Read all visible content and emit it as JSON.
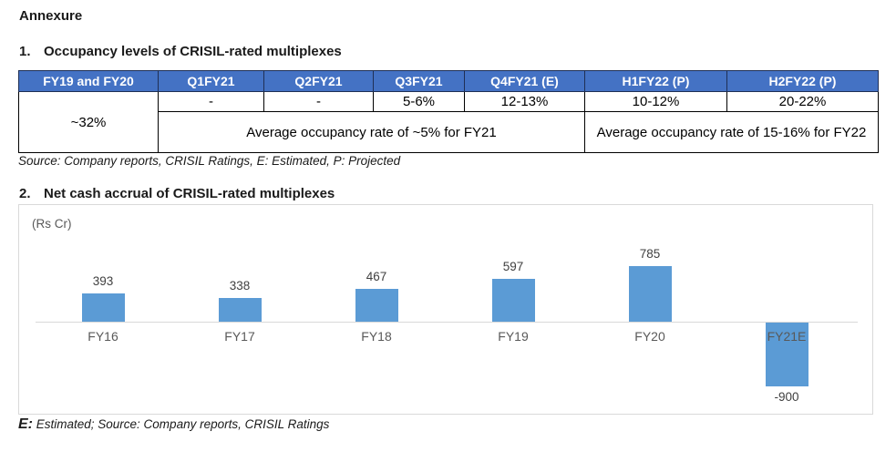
{
  "page": {
    "title": "Annexure"
  },
  "colors": {
    "header_blue": "#4472C4",
    "bar_blue": "#5B9BD5"
  },
  "section1": {
    "heading_num": "1.",
    "heading": "Occupancy levels of CRISIL-rated multiplexes",
    "table": {
      "headers": [
        "FY19 and FY20",
        "Q1FY21",
        "Q2FY21",
        "Q3FY21",
        "Q4FY21 (E)",
        "H1FY22 (P)",
        "H2FY22 (P)"
      ],
      "fy19_fy20_value": "~32%",
      "quarter_values": [
        "-",
        "-",
        "5-6%",
        "12-13%",
        "10-12%",
        "20-22%"
      ],
      "fy21_summary": "Average occupancy rate of ~5% for FY21",
      "fy22_summary": "Average occupancy rate of 15-16% for FY22"
    },
    "source_note": "Source: Company reports, CRISIL Ratings, E: Estimated, P: Projected"
  },
  "section2": {
    "heading_num": "2.",
    "heading": "Net cash accrual of CRISIL-rated multiplexes",
    "unit_label": "(Rs Cr)",
    "footnote_prefix": "E:",
    "footnote_rest": " Estimated; Source: Company reports, CRISIL Ratings"
  },
  "chart_data": {
    "type": "bar",
    "title": "Net cash accrual of CRISIL-rated multiplexes",
    "categories": [
      "FY16",
      "FY17",
      "FY18",
      "FY19",
      "FY20",
      "FY21E"
    ],
    "values": [
      393,
      338,
      467,
      597,
      785,
      -900
    ],
    "xlabel": "",
    "ylabel": "(Rs Cr)",
    "ylim": [
      -1000,
      900
    ],
    "bar_color": "#5B9BD5",
    "grid": false,
    "legend": false,
    "data_labels": true
  }
}
